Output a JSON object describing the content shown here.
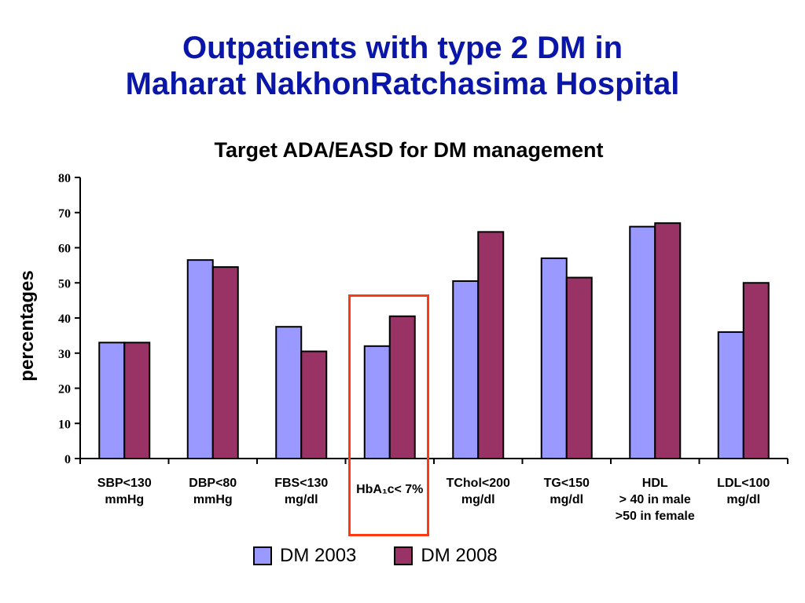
{
  "slide": {
    "title_line1": "Outpatients with type 2 DM in",
    "title_line2": "Maharat NakhonRatchasima Hospital"
  },
  "chart_data": {
    "type": "bar",
    "title": "Target ADA/EASD for DM management",
    "ylabel": "percentages",
    "xlabel": "",
    "ylim": [
      0,
      80
    ],
    "yticks": [
      0,
      10,
      20,
      30,
      40,
      50,
      60,
      70,
      80
    ],
    "categories": [
      [
        "SBP<130",
        "mmHg"
      ],
      [
        "DBP<80",
        "mmHg"
      ],
      [
        "FBS<130",
        "mg/dl"
      ],
      [
        "HbA₁c< 7%"
      ],
      [
        "TChol<200",
        "mg/dl"
      ],
      [
        "TG<150",
        "mg/dl"
      ],
      [
        "HDL",
        "> 40 in male",
        ">50 in female"
      ],
      [
        "LDL<100",
        "mg/dl"
      ]
    ],
    "series": [
      {
        "name": "DM 2003",
        "color": "#9999ff",
        "values": [
          33,
          56.5,
          37.5,
          32,
          50.5,
          57,
          66,
          36
        ]
      },
      {
        "name": "DM 2008",
        "color": "#993366",
        "values": [
          33,
          54.5,
          30.5,
          40.5,
          64.5,
          51.5,
          67,
          50
        ]
      }
    ],
    "legend_position": "bottom",
    "grid": false,
    "highlight_category_index": 3,
    "highlight_color": "#ff3a12"
  }
}
